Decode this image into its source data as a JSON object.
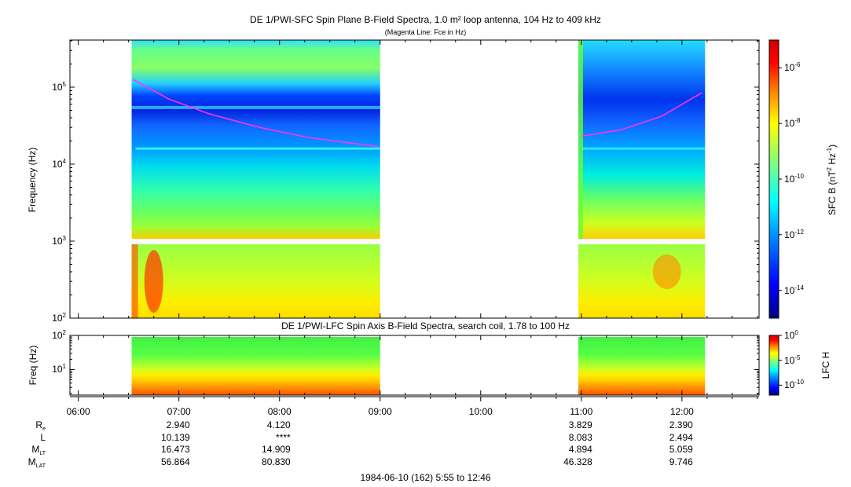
{
  "title": "DE 1/PWI-SFC  Spin Plane B-Field Spectra, 1.0 m² loop antenna, 104 Hz to 409 kHz",
  "subtitle": "(Magenta Line: Fce in Hz)",
  "footer": "1984-06-10 (162) 5:55 to 12:46",
  "colors": {
    "magenta_line": "#ff33ff",
    "colorscale": [
      "#00007f",
      "#0000ff",
      "#007fff",
      "#00ffff",
      "#7fff7f",
      "#ffff00",
      "#ff7f00",
      "#ff0000",
      "#7f0000"
    ]
  },
  "chart_data": [
    {
      "type": "heatmap",
      "name": "sfc",
      "title": "DE 1/PWI-SFC  Spin Plane B-Field Spectra, 1.0 m² loop antenna, 104 Hz to 409 kHz",
      "ylabel": "Frequency (Hz)",
      "yscale": "log",
      "ylim": [
        100,
        409000
      ],
      "yticks": [
        {
          "value": 100,
          "base": "10",
          "exp": "2"
        },
        {
          "value": 1000,
          "base": "10",
          "exp": "3"
        },
        {
          "value": 10000,
          "base": "10",
          "exp": "4"
        },
        {
          "value": 100000,
          "base": "10",
          "exp": "5"
        }
      ],
      "xlim_hours": [
        5.9167,
        12.7667
      ],
      "data_intervals_hours": [
        [
          6.53,
          9.0
        ],
        [
          10.97,
          12.23
        ]
      ],
      "colorbar": {
        "label": "SFC B (nT² Hz⁻¹)",
        "label_base": "SFC B (nT",
        "label_sup1": "2",
        "label_mid": " Hz",
        "label_sup2": "-1",
        "label_end": ")",
        "scale": "log",
        "range": [
          1e-15,
          1e-05
        ],
        "ticks": [
          {
            "value": 1e-06,
            "base": "10",
            "exp": "-6"
          },
          {
            "value": 1e-08,
            "base": "10",
            "exp": "-8"
          },
          {
            "value": 1e-10,
            "base": "10",
            "exp": "-10"
          },
          {
            "value": 1e-12,
            "base": "10",
            "exp": "-12"
          },
          {
            "value": 1e-14,
            "base": "10",
            "exp": "-14"
          }
        ]
      },
      "fce_line": [
        {
          "t": 6.55,
          "f": 125000
        },
        {
          "t": 6.9,
          "f": 70000
        },
        {
          "t": 7.3,
          "f": 45000
        },
        {
          "t": 7.8,
          "f": 30000
        },
        {
          "t": 8.3,
          "f": 22000
        },
        {
          "t": 8.98,
          "f": 17000
        },
        {
          "null": true
        },
        {
          "t": 11.0,
          "f": 23000
        },
        {
          "t": 11.4,
          "f": 28000
        },
        {
          "t": 11.8,
          "f": 42000
        },
        {
          "t": 12.2,
          "f": 85000
        }
      ]
    },
    {
      "type": "heatmap",
      "name": "lfc",
      "title": "DE 1/PWI-LFC  Spin Axis B-Field Spectra, search coil, 1.78 to 100 Hz",
      "ylabel": "Freq (Hz)",
      "yscale": "log",
      "ylim": [
        1.78,
        100
      ],
      "yticks": [
        {
          "value": 10,
          "base": "10",
          "exp": "1"
        },
        {
          "value": 100,
          "base": "10",
          "exp": "2"
        }
      ],
      "data_intervals_hours": [
        [
          6.53,
          9.0
        ],
        [
          10.97,
          12.23
        ]
      ],
      "colorbar": {
        "label": "LFC H",
        "scale": "log",
        "range": [
          1e-12,
          1
        ],
        "ticks": [
          {
            "value": 1,
            "base": "10",
            "exp": "0"
          },
          {
            "value": 1e-05,
            "base": "10",
            "exp": "-5"
          },
          {
            "value": 1e-10,
            "base": "10",
            "exp": "-10"
          }
        ]
      }
    }
  ],
  "xaxis": {
    "ticks": [
      {
        "hour": 6,
        "label": "06:00"
      },
      {
        "hour": 7,
        "label": "07:00"
      },
      {
        "hour": 8,
        "label": "08:00"
      },
      {
        "hour": 9,
        "label": "09:00"
      },
      {
        "hour": 10,
        "label": "10:00"
      },
      {
        "hour": 11,
        "label": "11:00"
      },
      {
        "hour": 12,
        "label": "12:00"
      }
    ]
  },
  "ephemeris": {
    "rows": [
      {
        "label": "R",
        "sub": "e",
        "values": [
          "2.940",
          "4.120",
          "",
          "",
          "3.829",
          "2.390"
        ]
      },
      {
        "label": "L",
        "sub": "",
        "values": [
          "10.139",
          "****",
          "",
          "",
          "8.083",
          "2.494"
        ]
      },
      {
        "label": "M",
        "sub": "LT",
        "values": [
          "16.473",
          "14.909",
          "",
          "",
          "4.894",
          "5.059"
        ]
      },
      {
        "label": "M",
        "sub": "LAT",
        "values": [
          "56.864",
          "80.830",
          "",
          "",
          "46.328",
          "9.746"
        ]
      }
    ]
  }
}
